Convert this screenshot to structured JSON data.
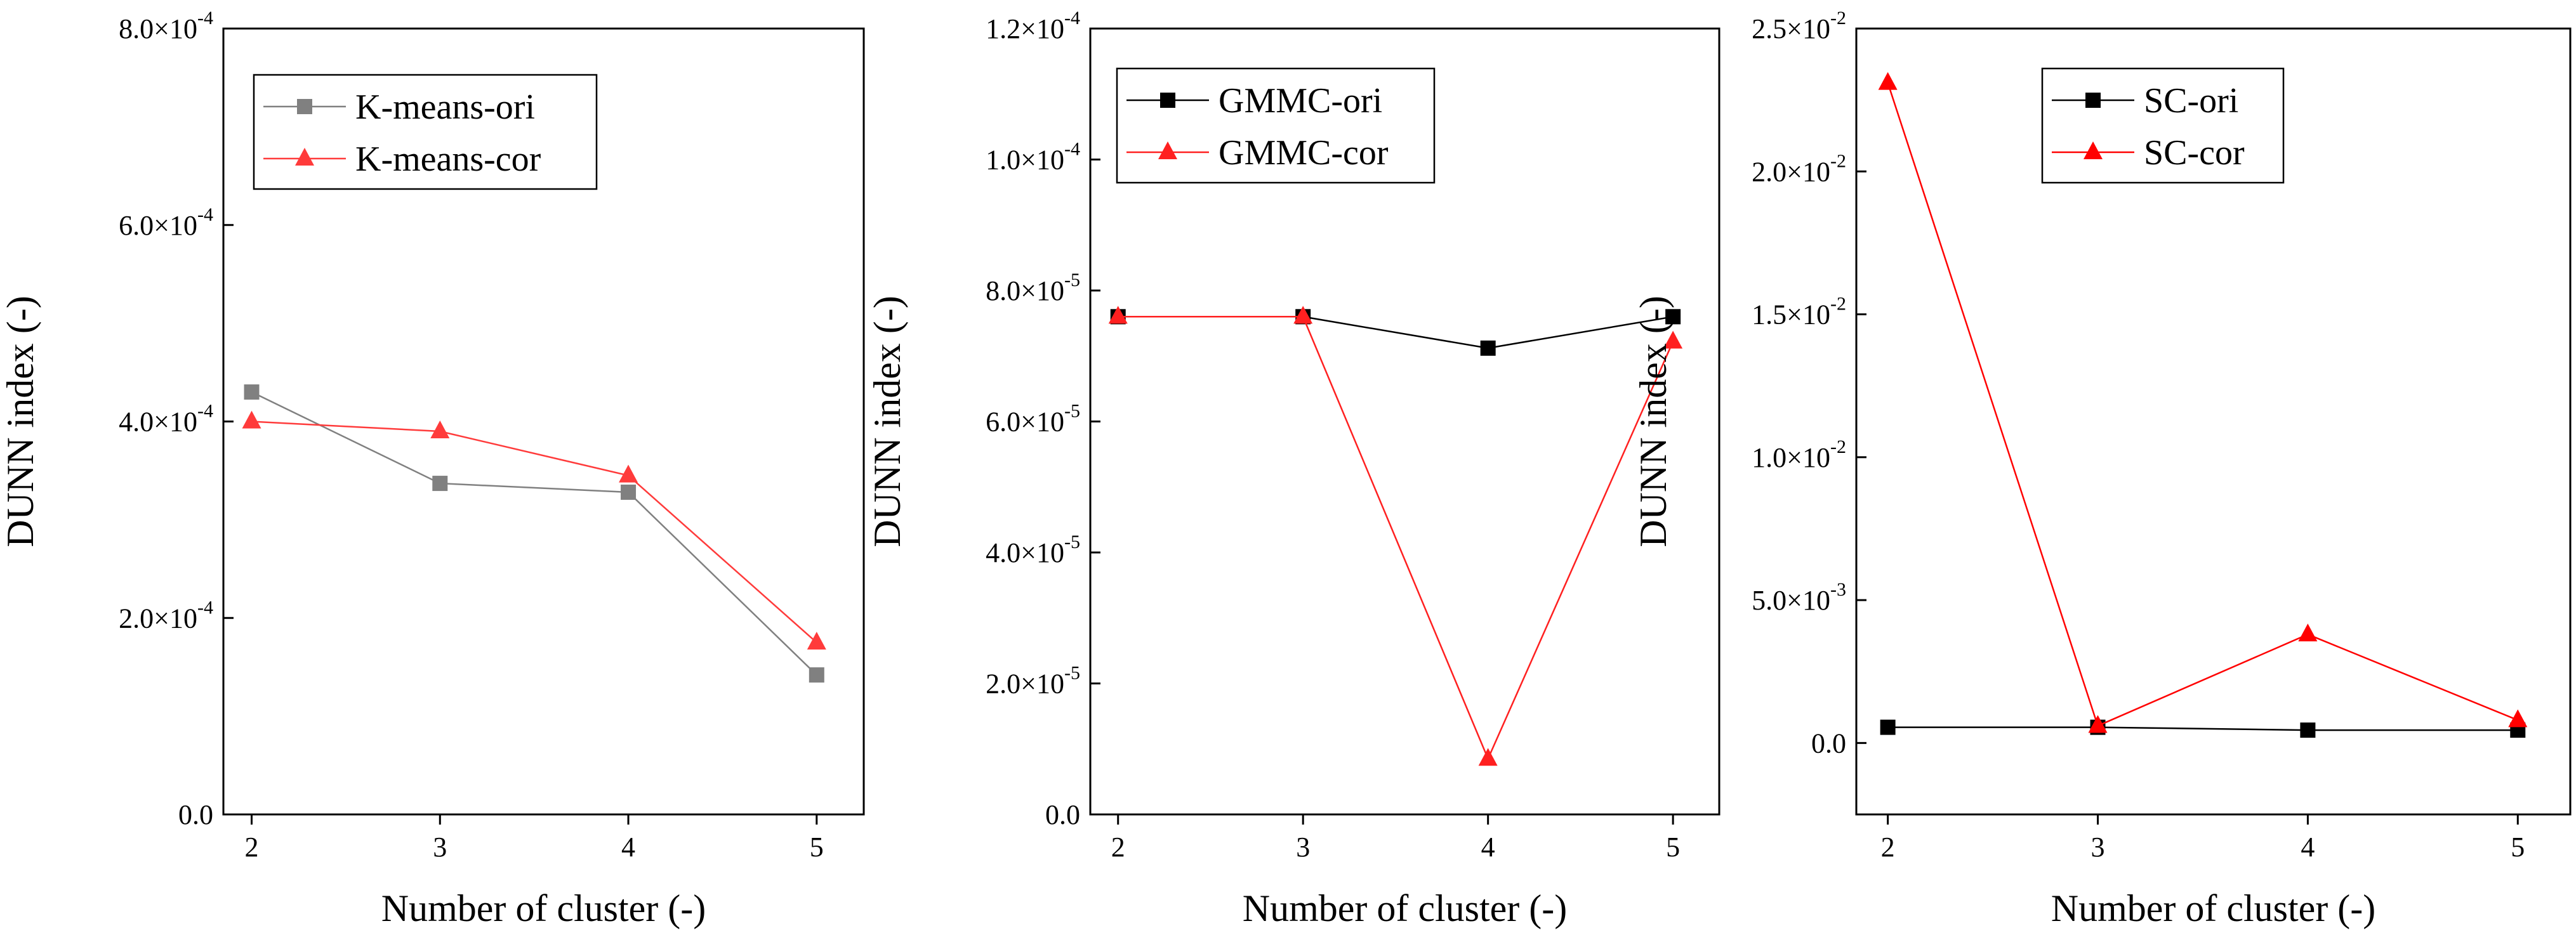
{
  "chart_data": [
    {
      "type": "line",
      "title": "",
      "xlabel": "Number of cluster (-)",
      "ylabel": "DUNN index (-)",
      "categories": [
        2,
        3,
        4,
        5
      ],
      "xlim": [
        1.85,
        5.25
      ],
      "ylim": [
        0,
        0.0008
      ],
      "yticks": [
        {
          "value": 0,
          "mantissa": "0.0",
          "exp": ""
        },
        {
          "value": 0.0002,
          "mantissa": "2.0×10",
          "exp": "-4"
        },
        {
          "value": 0.0004,
          "mantissa": "4.0×10",
          "exp": "-4"
        },
        {
          "value": 0.0006,
          "mantissa": "6.0×10",
          "exp": "-4"
        },
        {
          "value": 0.0008,
          "mantissa": "8.0×10",
          "exp": "-4"
        }
      ],
      "legend_position": "top-left",
      "series": [
        {
          "name": "K-means-ori",
          "color": "#808080",
          "marker": "square",
          "values": [
            0.00043,
            0.000337,
            0.000328,
            0.000142
          ]
        },
        {
          "name": "K-means-cor",
          "color": "#ff3b3b",
          "marker": "triangle",
          "values": [
            0.0004,
            0.00039,
            0.000345,
            0.000175
          ]
        }
      ]
    },
    {
      "type": "line",
      "title": "",
      "xlabel": "Number of cluster (-)",
      "ylabel": "DUNN index (-)",
      "categories": [
        2,
        3,
        4,
        5
      ],
      "xlim": [
        1.85,
        5.25
      ],
      "ylim": [
        0,
        0.00012
      ],
      "yticks": [
        {
          "value": 0,
          "mantissa": "0.0",
          "exp": ""
        },
        {
          "value": 2e-05,
          "mantissa": "2.0×10",
          "exp": "-5"
        },
        {
          "value": 4e-05,
          "mantissa": "4.0×10",
          "exp": "-5"
        },
        {
          "value": 6e-05,
          "mantissa": "6.0×10",
          "exp": "-5"
        },
        {
          "value": 8e-05,
          "mantissa": "8.0×10",
          "exp": "-5"
        },
        {
          "value": 0.0001,
          "mantissa": "1.0×10",
          "exp": "-4"
        },
        {
          "value": 0.00012,
          "mantissa": "1.2×10",
          "exp": "-4"
        }
      ],
      "legend_position": "top-left",
      "series": [
        {
          "name": "GMMC-ori",
          "color": "#000000",
          "marker": "square",
          "values": [
            7.6e-05,
            7.6e-05,
            7.12e-05,
            7.6e-05
          ]
        },
        {
          "name": "GMMC-cor",
          "color": "#ff2020",
          "marker": "triangle",
          "values": [
            7.6e-05,
            7.6e-05,
            8.5e-06,
            7.22e-05
          ]
        }
      ]
    },
    {
      "type": "line",
      "title": "",
      "xlabel": "Number of cluster (-)",
      "ylabel": "DUNN index (-)",
      "categories": [
        2,
        3,
        4,
        5
      ],
      "xlim": [
        1.85,
        5.25
      ],
      "ylim": [
        -0.0025,
        0.025
      ],
      "yticks": [
        {
          "value": 0,
          "mantissa": "0.0",
          "exp": ""
        },
        {
          "value": 0.005,
          "mantissa": "5.0×10",
          "exp": "-3"
        },
        {
          "value": 0.01,
          "mantissa": "1.0×10",
          "exp": "-2"
        },
        {
          "value": 0.015,
          "mantissa": "1.5×10",
          "exp": "-2"
        },
        {
          "value": 0.02,
          "mantissa": "2.0×10",
          "exp": "-2"
        },
        {
          "value": 0.025,
          "mantissa": "2.5×10",
          "exp": "-2"
        }
      ],
      "legend_position": "top-center",
      "series": [
        {
          "name": "SC-ori",
          "color": "#000000",
          "marker": "square",
          "values": [
            0.00055,
            0.00055,
            0.00045,
            0.00045
          ]
        },
        {
          "name": "SC-cor",
          "color": "#ff0000",
          "marker": "triangle",
          "values": [
            0.0231,
            0.0006,
            0.0038,
            0.0008
          ]
        }
      ]
    }
  ]
}
